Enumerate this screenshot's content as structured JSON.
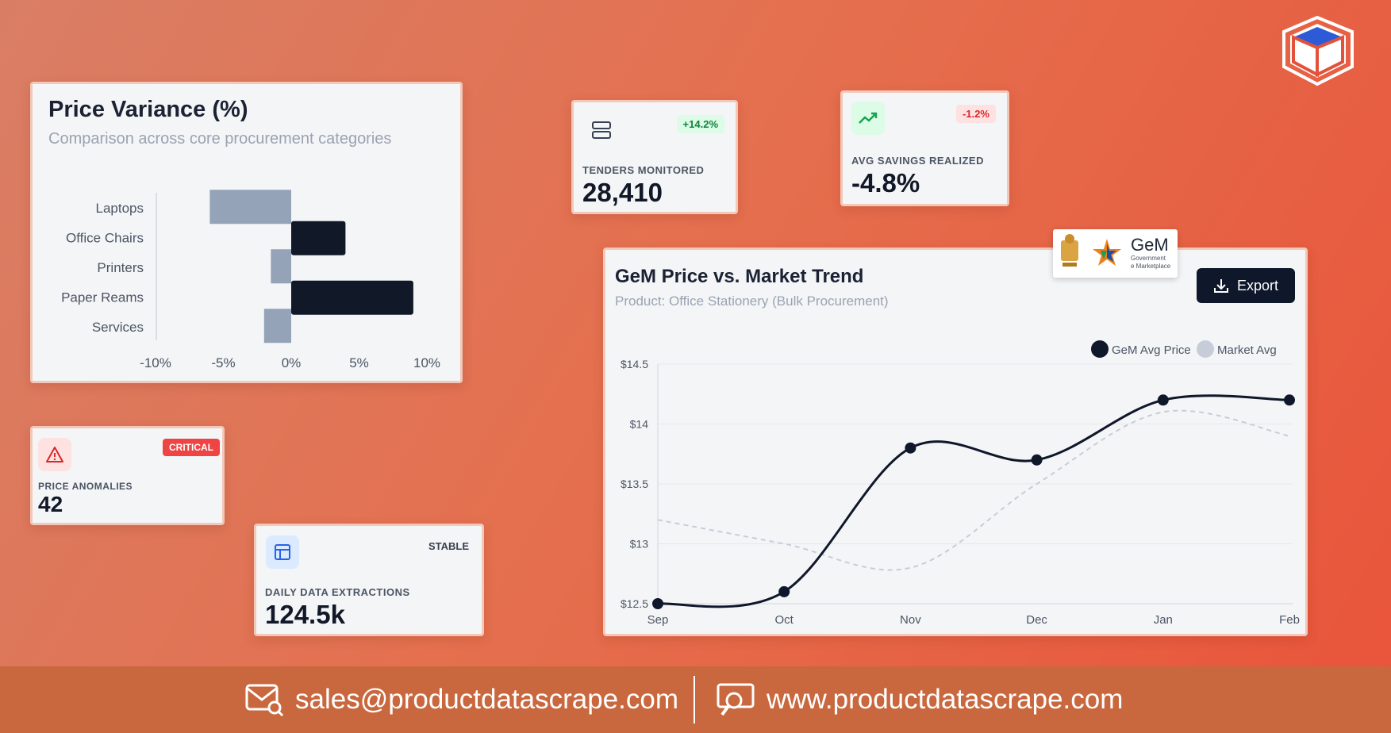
{
  "price_variance": {
    "title": "Price Variance (%)",
    "subtitle": "Comparison across core procurement categories",
    "chart_data": {
      "type": "bar",
      "orientation": "horizontal",
      "categories": [
        "Laptops",
        "Office Chairs",
        "Printers",
        "Paper Reams",
        "Services"
      ],
      "values": [
        -6,
        4,
        -1.5,
        9,
        -2
      ],
      "tick_labels": [
        "-10%",
        "-5%",
        "0%",
        "5%",
        "10%"
      ],
      "xlim": [
        -10,
        10
      ],
      "colors": {
        "negative": "#94a3b8",
        "positive": "#111827"
      }
    }
  },
  "tenders": {
    "label": "TENDERS MONITORED",
    "value": "28,410",
    "badge": "+14.2%",
    "icon": "server-stack-icon"
  },
  "savings": {
    "label": "AVG SAVINGS REALIZED",
    "value": "-4.8%",
    "badge": "-1.2%",
    "icon": "trending-up-icon"
  },
  "anomalies": {
    "label": "PRICE ANOMALIES",
    "value": "42",
    "badge": "CRITICAL",
    "icon": "alert-triangle-icon"
  },
  "extractions": {
    "label": "DAILY DATA EXTRACTIONS",
    "value": "124.5k",
    "badge": "STABLE",
    "icon": "layout-icon"
  },
  "trend": {
    "title": "GeM Price vs. Market Trend",
    "subtitle": "Product: Office Stationery (Bulk Procurement)",
    "export_label": "Export",
    "chart_data": {
      "type": "line",
      "categories": [
        "Sep",
        "Oct",
        "Nov",
        "Dec",
        "Jan",
        "Feb"
      ],
      "y_tick_labels": [
        "$14.5",
        "$14",
        "$13.5",
        "$13",
        "$12.5"
      ],
      "y_ticks": [
        14.5,
        14,
        13.5,
        13,
        12.5
      ],
      "ylim": [
        12.5,
        14.5
      ],
      "legend_position": "top-right",
      "series": [
        {
          "name": "GeM Avg Price",
          "values": [
            12.5,
            12.6,
            13.8,
            13.7,
            14.2,
            14.2
          ],
          "color": "#0f172a",
          "style": "solid"
        },
        {
          "name": "Market Avg",
          "values": [
            13.2,
            13.0,
            12.8,
            13.5,
            14.1,
            13.9
          ],
          "color": "#c7cdd8",
          "style": "dashed"
        }
      ]
    }
  },
  "gem_logo": {
    "text": "GeM",
    "sub1": "Government",
    "sub2": "e Marketplace"
  },
  "footer": {
    "email": "sales@productdatascrape.com",
    "website": "www.productdatascrape.com"
  }
}
